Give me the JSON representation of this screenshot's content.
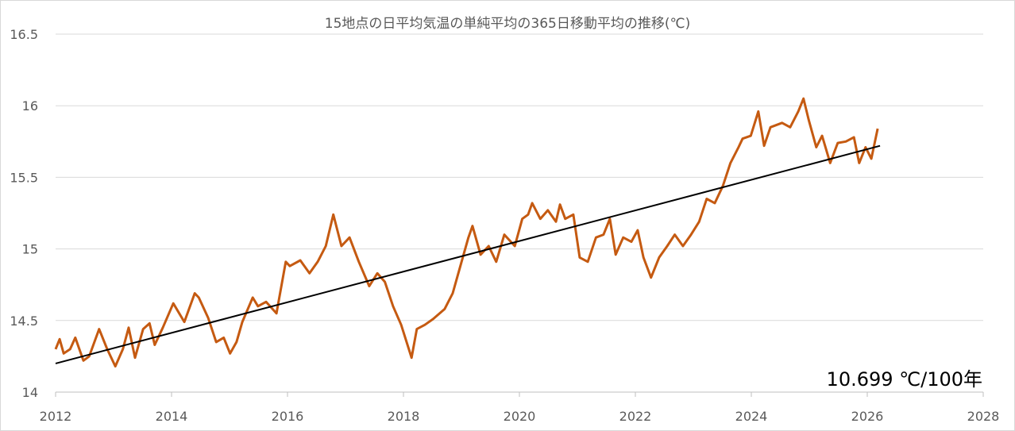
{
  "chart_data": {
    "type": "line",
    "title": "15地点の日平均気温の単純平均の365日移動平均の推移(℃)",
    "xlabel": "",
    "ylabel": "",
    "xlim": [
      2012,
      2028
    ],
    "ylim": [
      14,
      16.5
    ],
    "x_ticks": [
      "2012",
      "2014",
      "2016",
      "2018",
      "2020",
      "2022",
      "2024",
      "2026",
      "2028"
    ],
    "y_ticks": [
      "14",
      "14.5",
      "15",
      "15.5",
      "16",
      "16.5"
    ],
    "grid": "horizontal",
    "annotation": "10.699 ℃/100年",
    "colors": {
      "series": "#C55A11",
      "trend": "#000000",
      "grid": "#D9D9D9"
    },
    "series": [
      {
        "points": [
          [
            2012.0,
            14.3
          ],
          [
            2012.07,
            14.37
          ],
          [
            2012.14,
            14.27
          ],
          [
            2012.25,
            14.3
          ],
          [
            2012.34,
            14.38
          ],
          [
            2012.48,
            14.22
          ],
          [
            2012.58,
            14.25
          ],
          [
            2012.75,
            14.44
          ],
          [
            2012.89,
            14.3
          ],
          [
            2013.03,
            14.18
          ],
          [
            2013.16,
            14.3
          ],
          [
            2013.26,
            14.45
          ],
          [
            2013.37,
            14.24
          ],
          [
            2013.51,
            14.44
          ],
          [
            2013.62,
            14.48
          ],
          [
            2013.71,
            14.33
          ],
          [
            2013.85,
            14.45
          ],
          [
            2014.03,
            14.62
          ],
          [
            2014.22,
            14.49
          ],
          [
            2014.4,
            14.69
          ],
          [
            2014.47,
            14.66
          ],
          [
            2014.63,
            14.52
          ],
          [
            2014.77,
            14.35
          ],
          [
            2014.9,
            14.38
          ],
          [
            2015.01,
            14.27
          ],
          [
            2015.12,
            14.35
          ],
          [
            2015.22,
            14.49
          ],
          [
            2015.4,
            14.66
          ],
          [
            2015.49,
            14.6
          ],
          [
            2015.63,
            14.63
          ],
          [
            2015.81,
            14.55
          ],
          [
            2015.97,
            14.91
          ],
          [
            2016.04,
            14.88
          ],
          [
            2016.22,
            14.92
          ],
          [
            2016.38,
            14.83
          ],
          [
            2016.52,
            14.91
          ],
          [
            2016.66,
            15.02
          ],
          [
            2016.79,
            15.24
          ],
          [
            2016.93,
            15.02
          ],
          [
            2017.07,
            15.08
          ],
          [
            2017.23,
            14.91
          ],
          [
            2017.41,
            14.74
          ],
          [
            2017.55,
            14.83
          ],
          [
            2017.68,
            14.77
          ],
          [
            2017.82,
            14.6
          ],
          [
            2017.96,
            14.47
          ],
          [
            2018.14,
            14.24
          ],
          [
            2018.23,
            14.44
          ],
          [
            2018.37,
            14.47
          ],
          [
            2018.51,
            14.51
          ],
          [
            2018.71,
            14.58
          ],
          [
            2018.85,
            14.69
          ],
          [
            2018.96,
            14.85
          ],
          [
            2019.12,
            15.08
          ],
          [
            2019.19,
            15.16
          ],
          [
            2019.33,
            14.96
          ],
          [
            2019.47,
            15.02
          ],
          [
            2019.6,
            14.91
          ],
          [
            2019.74,
            15.1
          ],
          [
            2019.92,
            15.02
          ],
          [
            2020.05,
            15.21
          ],
          [
            2020.15,
            15.24
          ],
          [
            2020.22,
            15.32
          ],
          [
            2020.36,
            15.21
          ],
          [
            2020.49,
            15.27
          ],
          [
            2020.63,
            15.19
          ],
          [
            2020.7,
            15.31
          ],
          [
            2020.79,
            15.21
          ],
          [
            2020.93,
            15.24
          ],
          [
            2021.04,
            14.94
          ],
          [
            2021.18,
            14.91
          ],
          [
            2021.32,
            15.08
          ],
          [
            2021.45,
            15.1
          ],
          [
            2021.56,
            15.21
          ],
          [
            2021.66,
            14.96
          ],
          [
            2021.79,
            15.08
          ],
          [
            2021.93,
            15.05
          ],
          [
            2022.04,
            15.13
          ],
          [
            2022.14,
            14.94
          ],
          [
            2022.27,
            14.8
          ],
          [
            2022.41,
            14.94
          ],
          [
            2022.55,
            15.02
          ],
          [
            2022.68,
            15.1
          ],
          [
            2022.82,
            15.02
          ],
          [
            2022.96,
            15.1
          ],
          [
            2023.1,
            15.19
          ],
          [
            2023.23,
            15.35
          ],
          [
            2023.37,
            15.32
          ],
          [
            2023.51,
            15.44
          ],
          [
            2023.64,
            15.6
          ],
          [
            2023.78,
            15.71
          ],
          [
            2023.85,
            15.77
          ],
          [
            2023.99,
            15.79
          ],
          [
            2024.12,
            15.96
          ],
          [
            2024.22,
            15.72
          ],
          [
            2024.33,
            15.85
          ],
          [
            2024.53,
            15.88
          ],
          [
            2024.67,
            15.85
          ],
          [
            2024.81,
            15.96
          ],
          [
            2024.9,
            16.05
          ],
          [
            2024.99,
            15.9
          ],
          [
            2025.12,
            15.71
          ],
          [
            2025.22,
            15.79
          ],
          [
            2025.36,
            15.6
          ],
          [
            2025.49,
            15.74
          ],
          [
            2025.63,
            15.75
          ],
          [
            2025.77,
            15.78
          ],
          [
            2025.86,
            15.6
          ],
          [
            2025.97,
            15.71
          ],
          [
            2026.07,
            15.63
          ],
          [
            2026.18,
            15.84
          ]
        ]
      }
    ],
    "trendline": [
      [
        2012.0,
        14.2
      ],
      [
        2026.22,
        15.72
      ]
    ]
  }
}
